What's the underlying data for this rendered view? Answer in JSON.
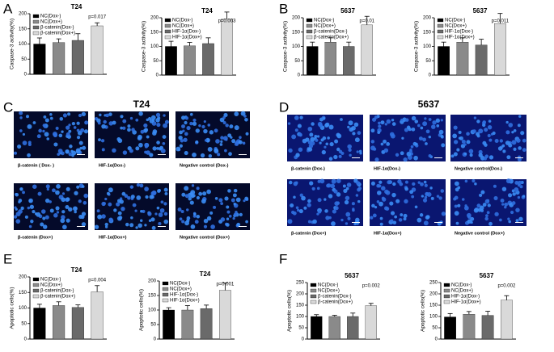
{
  "panel_letters": [
    "A",
    "B",
    "C",
    "D",
    "E",
    "F"
  ],
  "microscopy": [
    {
      "title": "T24",
      "labels": [
        "β-catenin ( Dox- )",
        "HIF-1α(Dox-)",
        "Negative control (Dox-)",
        "β-catenin (Dox+)",
        "HIF-1α(Dox+)",
        "Negative control (Dox+)"
      ]
    },
    {
      "title": "5637",
      "labels": [
        "β-catenin (Dox-)",
        "HIF-1α(Dox-)",
        "Negative control(Dox-)",
        "β-catenin (Dox+)",
        "HIF-1α(Dox+)",
        "Negative control (Dox+)"
      ]
    }
  ],
  "chart_data": [
    {
      "type": "bar",
      "title": "T24",
      "y_label": "Caspase-3 activity(%)",
      "annotation": "p=0.017",
      "ylim": [
        0,
        200
      ],
      "yticks": [
        0,
        50,
        100,
        150,
        200
      ],
      "series": [
        {
          "name": "NC(Dox-)",
          "color": "#000000",
          "values": [
            100
          ],
          "errors": [
            20
          ]
        },
        {
          "name": "NC(Dox+)",
          "color": "#8a8a8a",
          "values": [
            105
          ],
          "errors": [
            12
          ]
        },
        {
          "name": "β-catenin(Dox-)",
          "color": "#6a6a6a",
          "values": [
            112
          ],
          "errors": [
            22
          ]
        },
        {
          "name": "β-catenin(Dox+)",
          "color": "#d9d9d9",
          "values": [
            160
          ],
          "errors": [
            10
          ]
        }
      ]
    },
    {
      "type": "bar",
      "title": "T24",
      "y_label": "Caspase-3 activity(%)",
      "annotation": "p=0.003",
      "ylim": [
        0,
        200
      ],
      "yticks": [
        0,
        50,
        100,
        150,
        200
      ],
      "series": [
        {
          "name": "NC(Dox-)",
          "color": "#000000",
          "values": [
            100
          ],
          "errors": [
            18
          ]
        },
        {
          "name": "NC(Dox+)",
          "color": "#8a8a8a",
          "values": [
            102
          ],
          "errors": [
            12
          ]
        },
        {
          "name": "HIF-1α(Dox-)",
          "color": "#6a6a6a",
          "values": [
            110
          ],
          "errors": [
            20
          ]
        },
        {
          "name": "HIF-1α(Dox+)",
          "color": "#d9d9d9",
          "values": [
            195
          ],
          "errors": [
            25
          ]
        }
      ]
    },
    {
      "type": "bar",
      "title": "5637",
      "y_label": "Caspase-3 activity(%)",
      "annotation": "p=0.01",
      "ylim": [
        0,
        200
      ],
      "yticks": [
        0,
        50,
        100,
        150,
        200
      ],
      "series": [
        {
          "name": "NC(Dox-)",
          "color": "#000000",
          "values": [
            100
          ],
          "errors": [
            15
          ]
        },
        {
          "name": "NC(Dox+)",
          "color": "#8a8a8a",
          "values": [
            115
          ],
          "errors": [
            15
          ]
        },
        {
          "name": "β-catenin(Dox-)",
          "color": "#6a6a6a",
          "values": [
            100
          ],
          "errors": [
            15
          ]
        },
        {
          "name": "β-catenin(Dox+)",
          "color": "#d9d9d9",
          "values": [
            175
          ],
          "errors": [
            30
          ]
        }
      ]
    },
    {
      "type": "bar",
      "title": "5637",
      "y_label": "Caspase-3 activity(%)",
      "annotation": "p=0.011",
      "ylim": [
        0,
        200
      ],
      "yticks": [
        0,
        50,
        100,
        150,
        200
      ],
      "series": [
        {
          "name": "NC(Dox-)",
          "color": "#000000",
          "values": [
            100
          ],
          "errors": [
            15
          ]
        },
        {
          "name": "NC(Dox+)",
          "color": "#8a8a8a",
          "values": [
            115
          ],
          "errors": [
            15
          ]
        },
        {
          "name": "HIF-1α(Dox-)",
          "color": "#6a6a6a",
          "values": [
            105
          ],
          "errors": [
            20
          ]
        },
        {
          "name": "HIF-1α(Dox+)",
          "color": "#d9d9d9",
          "values": [
            180
          ],
          "errors": [
            35
          ]
        }
      ]
    },
    {
      "type": "bar",
      "title": "T24",
      "y_label": "Apoptotic cells(%)",
      "annotation": "p=0.004",
      "ylim": [
        0,
        200
      ],
      "yticks": [
        0,
        50,
        100,
        150,
        200
      ],
      "series": [
        {
          "name": "NC(Dox-)",
          "color": "#000000",
          "values": [
            100
          ],
          "errors": [
            12
          ]
        },
        {
          "name": "NC(Dox+)",
          "color": "#8a8a8a",
          "values": [
            108
          ],
          "errors": [
            12
          ]
        },
        {
          "name": "β-catenin(Dox-)",
          "color": "#6a6a6a",
          "values": [
            102
          ],
          "errors": [
            8
          ]
        },
        {
          "name": "β-catenin(Dox+)",
          "color": "#d9d9d9",
          "values": [
            152
          ],
          "errors": [
            20
          ]
        }
      ]
    },
    {
      "type": "bar",
      "title": "T24",
      "y_label": "Apoptotic cells(%)",
      "annotation": "p=0.001",
      "ylim": [
        0,
        200
      ],
      "yticks": [
        0,
        50,
        100,
        150,
        200
      ],
      "series": [
        {
          "name": "NC(Dox-)",
          "color": "#000000",
          "values": [
            100
          ],
          "errors": [
            8
          ]
        },
        {
          "name": "NC(Dox+)",
          "color": "#8a8a8a",
          "values": [
            100
          ],
          "errors": [
            15
          ]
        },
        {
          "name": "HIF-1α(Dox-)",
          "color": "#6a6a6a",
          "values": [
            105
          ],
          "errors": [
            12
          ]
        },
        {
          "name": "HIF-1α(Dox+)",
          "color": "#d9d9d9",
          "values": [
            168
          ],
          "errors": [
            25
          ]
        }
      ]
    },
    {
      "type": "bar",
      "title": "5637",
      "y_label": "Apoptotic cells(%)",
      "annotation": "p=0.002",
      "ylim": [
        0,
        250
      ],
      "yticks": [
        0,
        50,
        100,
        150,
        200,
        250
      ],
      "series": [
        {
          "name": "NC(Dox-)",
          "color": "#000000",
          "values": [
            100
          ],
          "errors": [
            8
          ]
        },
        {
          "name": "NC(Dox+)",
          "color": "#8a8a8a",
          "values": [
            100
          ],
          "errors": [
            5
          ]
        },
        {
          "name": "β-catenin(Dox-)",
          "color": "#6a6a6a",
          "values": [
            100
          ],
          "errors": [
            15
          ]
        },
        {
          "name": "β-catenin(Dox+)",
          "color": "#d9d9d9",
          "values": [
            148
          ],
          "errors": [
            10
          ]
        }
      ]
    },
    {
      "type": "bar",
      "title": "5637",
      "y_label": "Apoptotic cells(%)",
      "annotation": "p=0.002",
      "ylim": [
        0,
        250
      ],
      "yticks": [
        0,
        50,
        100,
        150,
        200,
        250
      ],
      "series": [
        {
          "name": "NC(Dox-)",
          "color": "#000000",
          "values": [
            98
          ],
          "errors": [
            15
          ]
        },
        {
          "name": "NC(Dox+)",
          "color": "#8a8a8a",
          "values": [
            110
          ],
          "errors": [
            12
          ]
        },
        {
          "name": "HIF-1α(Dox-)",
          "color": "#6a6a6a",
          "values": [
            105
          ],
          "errors": [
            18
          ]
        },
        {
          "name": "HIF-1α(Dox+)",
          "color": "#d9d9d9",
          "values": [
            172
          ],
          "errors": [
            20
          ]
        }
      ]
    }
  ]
}
